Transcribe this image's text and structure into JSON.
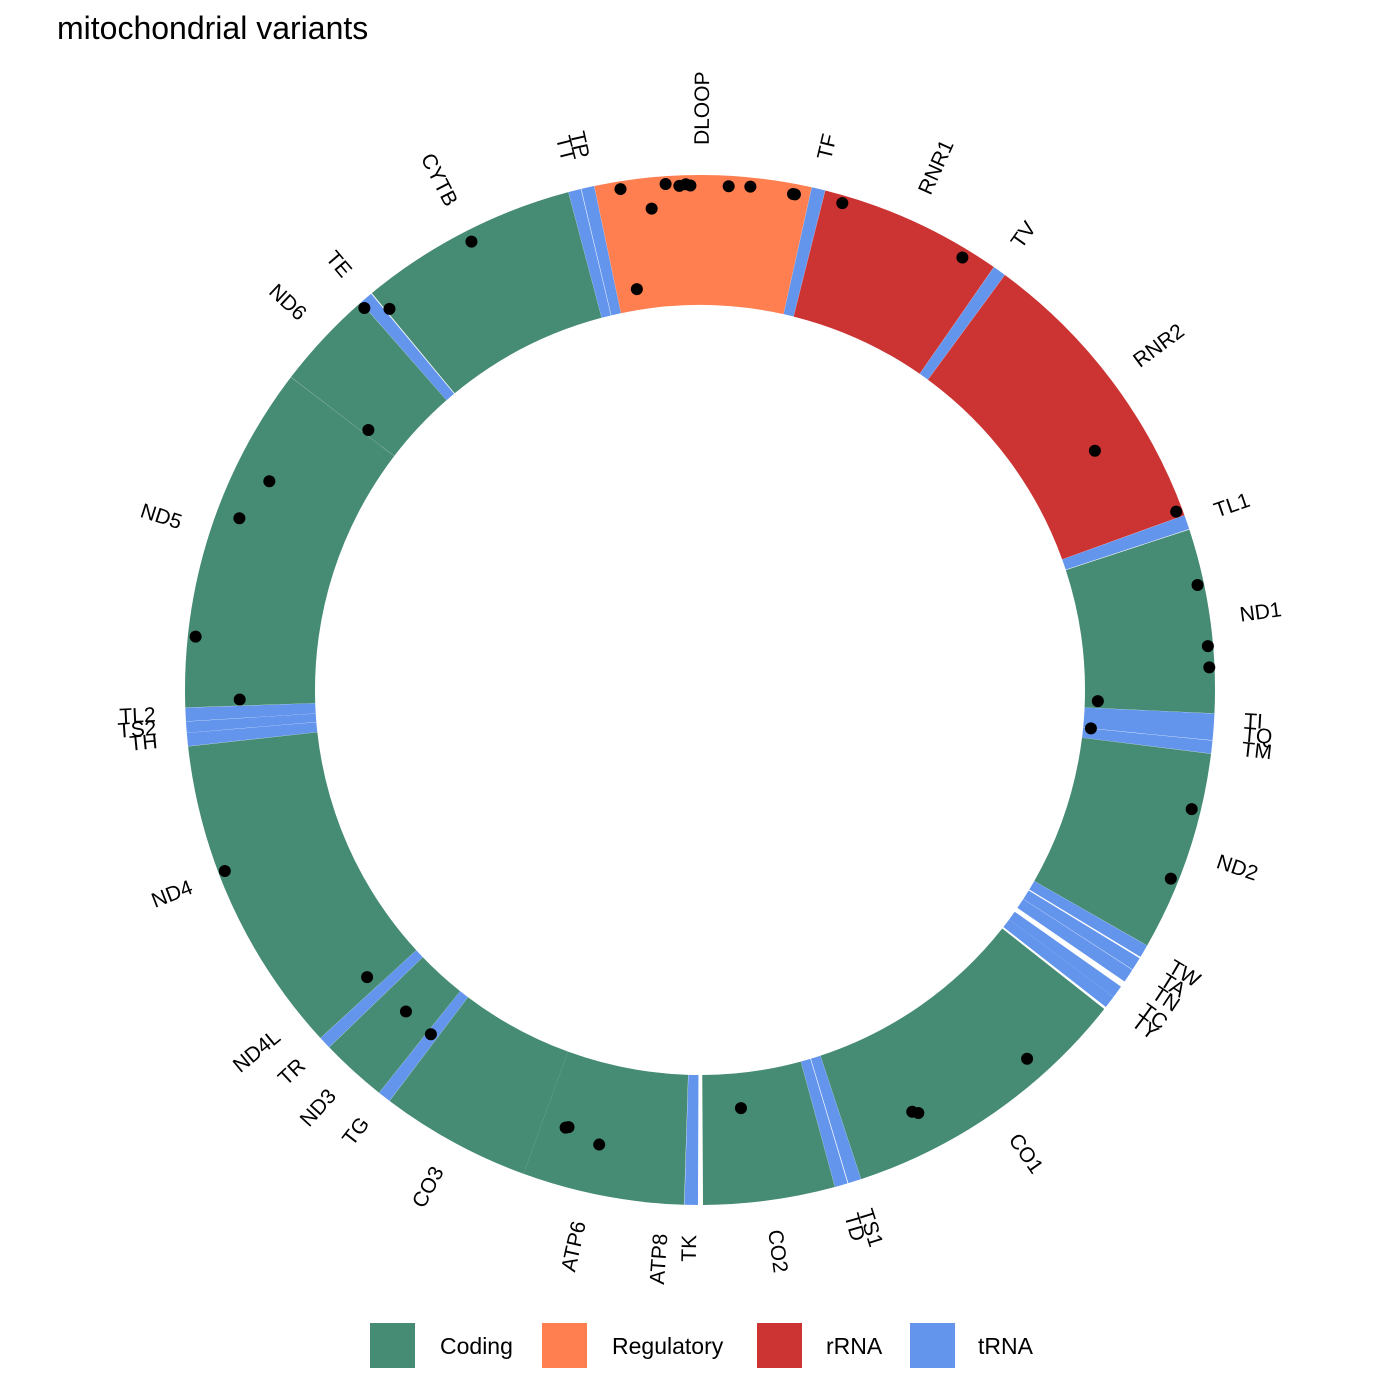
{
  "chart_data": {
    "type": "donut",
    "title": "mitochondrial variants",
    "x_range": [
      1,
      16569
    ],
    "colors": {
      "Coding": "#468B73",
      "Regulatory": "#FF7F50",
      "rRNA": "#CC3333",
      "tRNA": "#6495ED"
    },
    "legend": {
      "position": "bottom",
      "entries": [
        "Coding",
        "Regulatory",
        "rRNA",
        "tRNA"
      ]
    },
    "segments": [
      {
        "label": "TF",
        "start": 577,
        "end": 647,
        "type": "tRNA"
      },
      {
        "label": "RNR1",
        "start": 648,
        "end": 1601,
        "type": "rRNA"
      },
      {
        "label": "TV",
        "start": 1602,
        "end": 1670,
        "type": "tRNA"
      },
      {
        "label": "RNR2",
        "start": 1671,
        "end": 3229,
        "type": "rRNA"
      },
      {
        "label": "TL1",
        "start": 3230,
        "end": 3304,
        "type": "tRNA"
      },
      {
        "label": "ND1",
        "start": 3307,
        "end": 4262,
        "type": "Coding"
      },
      {
        "label": "TI",
        "start": 4263,
        "end": 4331,
        "type": "tRNA"
      },
      {
        "label": "TQ",
        "start": 4329,
        "end": 4400,
        "type": "tRNA"
      },
      {
        "label": "TM",
        "start": 4402,
        "end": 4469,
        "type": "tRNA"
      },
      {
        "label": "ND2",
        "start": 4470,
        "end": 5511,
        "type": "Coding"
      },
      {
        "label": "TW",
        "start": 5512,
        "end": 5579,
        "type": "tRNA"
      },
      {
        "label": "TA",
        "start": 5587,
        "end": 5655,
        "type": "tRNA"
      },
      {
        "label": "TN",
        "start": 5657,
        "end": 5729,
        "type": "tRNA"
      },
      {
        "label": "TC",
        "start": 5761,
        "end": 5826,
        "type": "tRNA"
      },
      {
        "label": "TY",
        "start": 5826,
        "end": 5891,
        "type": "tRNA"
      },
      {
        "label": "CO1",
        "start": 5904,
        "end": 7445,
        "type": "Coding"
      },
      {
        "label": "TS1",
        "start": 7446,
        "end": 7514,
        "type": "tRNA"
      },
      {
        "label": "TD",
        "start": 7518,
        "end": 7585,
        "type": "tRNA"
      },
      {
        "label": "CO2",
        "start": 7586,
        "end": 8269,
        "type": "Coding"
      },
      {
        "label": "TK",
        "start": 8295,
        "end": 8364,
        "type": "tRNA"
      },
      {
        "label": "ATP8",
        "start": 8366,
        "end": 8572,
        "type": "Coding"
      },
      {
        "label": "ATP6",
        "start": 8527,
        "end": 9207,
        "type": "Coding"
      },
      {
        "label": "CO3",
        "start": 9207,
        "end": 9990,
        "type": "Coding"
      },
      {
        "label": "TG",
        "start": 9991,
        "end": 10058,
        "type": "tRNA"
      },
      {
        "label": "ND3",
        "start": 10059,
        "end": 10404,
        "type": "Coding"
      },
      {
        "label": "TR",
        "start": 10405,
        "end": 10469,
        "type": "tRNA"
      },
      {
        "label": "ND4L",
        "start": 10470,
        "end": 10766,
        "type": "Coding"
      },
      {
        "label": "ND4",
        "start": 10760,
        "end": 12137,
        "type": "Coding"
      },
      {
        "label": "TH",
        "start": 12138,
        "end": 12206,
        "type": "tRNA"
      },
      {
        "label": "TS2",
        "start": 12207,
        "end": 12265,
        "type": "tRNA"
      },
      {
        "label": "TL2",
        "start": 12266,
        "end": 12336,
        "type": "tRNA"
      },
      {
        "label": "ND5",
        "start": 12337,
        "end": 14148,
        "type": "Coding"
      },
      {
        "label": "ND6",
        "start": 14149,
        "end": 14673,
        "type": "Coding"
      },
      {
        "label": "TE",
        "start": 14674,
        "end": 14742,
        "type": "tRNA"
      },
      {
        "label": "CYTB",
        "start": 14747,
        "end": 15887,
        "type": "Coding"
      },
      {
        "label": "TT",
        "start": 15888,
        "end": 15953,
        "type": "tRNA"
      },
      {
        "label": "TP",
        "start": 15956,
        "end": 16023,
        "type": "tRNA"
      },
      {
        "label": "DLOOP",
        "start": 16024,
        "end": 576,
        "type": "Regulatory"
      }
    ],
    "variants": [
      {
        "position": 16154,
        "level": 0.94
      },
      {
        "position": 16390,
        "level": 0.94
      },
      {
        "position": 16461,
        "level": 0.92
      },
      {
        "position": 16495,
        "level": 0.93
      },
      {
        "position": 16519,
        "level": 0.92
      },
      {
        "position": 150,
        "level": 0.92
      },
      {
        "position": 263,
        "level": 0.93
      },
      {
        "position": 489,
        "level": 0.92
      },
      {
        "position": 16305,
        "level": 0.76
      },
      {
        "position": 16157,
        "level": 0.16
      },
      {
        "position": 499,
        "level": 0.92
      },
      {
        "position": 750,
        "level": 0.94
      },
      {
        "position": 1438,
        "level": 0.93
      },
      {
        "position": 2706,
        "level": 0.59
      },
      {
        "position": 3197,
        "level": 0.95
      },
      {
        "position": 3594,
        "level": 0.95
      },
      {
        "position": 3915,
        "level": 0.96
      },
      {
        "position": 4025,
        "level": 0.96
      },
      {
        "position": 4216,
        "level": 0.1
      },
      {
        "position": 4400,
        "level": 0.06
      },
      {
        "position": 4769,
        "level": 0.93
      },
      {
        "position": 5147,
        "level": 0.94
      },
      {
        "position": 6371,
        "level": 0.83
      },
      {
        "position": 7028,
        "level": 0.7
      },
      {
        "position": 7055,
        "level": 0.67
      },
      {
        "position": 8027,
        "level": 0.27
      },
      {
        "position": 8860,
        "level": 0.62
      },
      {
        "position": 9055,
        "level": 0.55
      },
      {
        "position": 9070,
        "level": 0.56
      },
      {
        "position": 10034,
        "level": 0.4
      },
      {
        "position": 10238,
        "level": 0.39
      },
      {
        "position": 10550,
        "level": 0.42
      },
      {
        "position": 11467,
        "level": 0.95
      },
      {
        "position": 12372,
        "level": 0.58
      },
      {
        "position": 12705,
        "level": 0.94
      },
      {
        "position": 13368,
        "level": 0.82
      },
      {
        "position": 13617,
        "level": 0.72
      },
      {
        "position": 14180,
        "level": 0.28
      },
      {
        "position": 14668,
        "level": 0.95
      },
      {
        "position": 14766,
        "level": 0.82
      },
      {
        "position": 15326,
        "level": 0.91
      }
    ]
  }
}
